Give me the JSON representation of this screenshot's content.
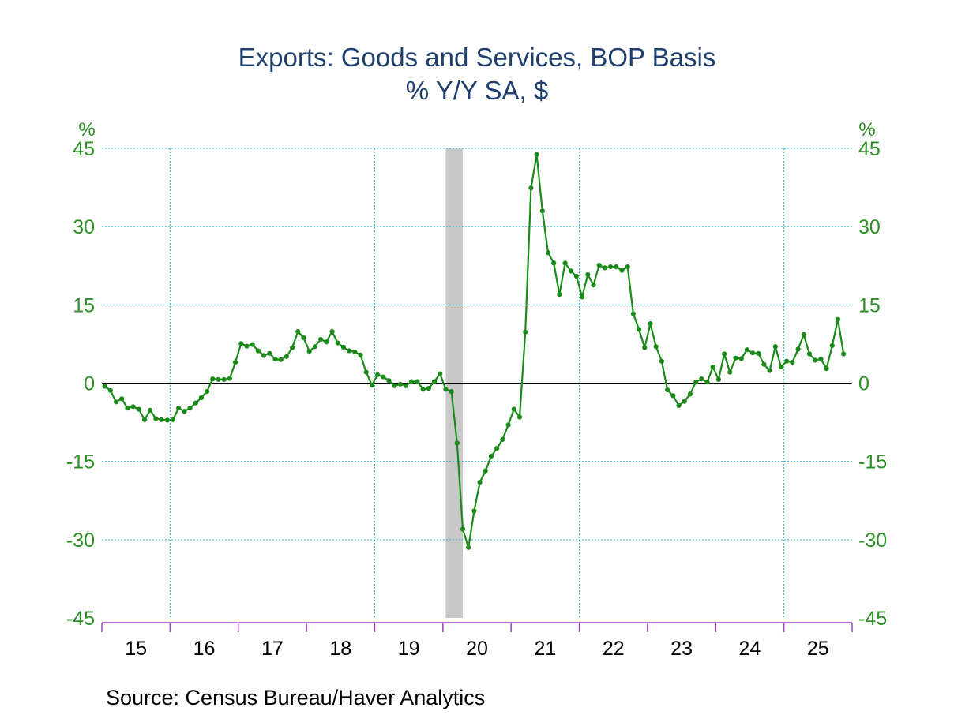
{
  "title": "Exports: Goods and Services, BOP Basis",
  "subtitle": "% Y/Y   SA, $",
  "source": "Source:  Census Bureau/Haver Analytics",
  "colors": {
    "series": "#1a8a1a",
    "axis_text": "#2b8f24",
    "title": "#1f3f6e",
    "grid": "#29b6d6",
    "recession": "#c8c8c8",
    "x_axis": "#a040c0"
  },
  "chart_data": {
    "type": "line",
    "title": "Exports: Goods and Services, BOP Basis",
    "subtitle": "% Y/Y   SA, $",
    "ylabel_left": "%",
    "ylabel_right": "%",
    "ylim": [
      -45,
      45
    ],
    "yticks": [
      45,
      30,
      15,
      0,
      -15,
      -30,
      -45
    ],
    "xlim": [
      "2015-01",
      "2025-12"
    ],
    "xtick_labels": [
      "15",
      "16",
      "17",
      "18",
      "19",
      "20",
      "21",
      "22",
      "23",
      "24",
      "25"
    ],
    "grid": true,
    "recession_shading": [
      {
        "start": "2020-02",
        "end": "2020-04"
      }
    ],
    "series": [
      {
        "start": "2015-01",
        "frequency": "monthly",
        "values": [
          -0.6,
          -1.4,
          -3.6,
          -3.0,
          -4.8,
          -4.5,
          -5.0,
          -7.0,
          -5.2,
          -6.8,
          -7.0,
          -7.1,
          -7.0,
          -4.8,
          -5.4,
          -4.8,
          -3.8,
          -2.8,
          -1.6,
          0.8,
          0.7,
          0.7,
          0.9,
          4.0,
          7.6,
          7.1,
          7.4,
          6.2,
          5.3,
          5.7,
          4.6,
          4.5,
          5.1,
          6.8,
          9.9,
          8.7,
          6.1,
          7.0,
          8.4,
          7.9,
          9.9,
          7.7,
          6.9,
          6.2,
          6.0,
          5.4,
          2.1,
          -0.4,
          1.6,
          1.2,
          0.5,
          -0.5,
          -0.2,
          -0.5,
          0.3,
          0.3,
          -1.2,
          -1.0,
          0.3,
          1.8,
          -1.2,
          -1.6,
          -11.5,
          -28.0,
          -31.5,
          -24.5,
          -19.0,
          -16.8,
          -14.0,
          -12.5,
          -10.8,
          -8.0,
          -5.0,
          -6.5,
          9.8,
          37.4,
          43.8,
          33.0,
          25.0,
          23.0,
          17.0,
          23.0,
          21.5,
          20.5,
          16.5,
          20.8,
          18.8,
          22.6,
          22.1,
          22.3,
          22.3,
          21.6,
          22.3,
          13.3,
          10.3,
          6.8,
          11.4,
          7.0,
          4.2,
          -1.3,
          -2.4,
          -4.3,
          -3.5,
          -2.1,
          0.2,
          0.8,
          0.2,
          3.1,
          0.7,
          5.6,
          2.1,
          4.8,
          4.7,
          6.4,
          5.8,
          5.7,
          3.6,
          2.4,
          7.0,
          3.1,
          4.2,
          4.0,
          6.5,
          9.3,
          5.6,
          4.4,
          4.6,
          2.8,
          7.2,
          12.2,
          5.6
        ]
      }
    ]
  }
}
